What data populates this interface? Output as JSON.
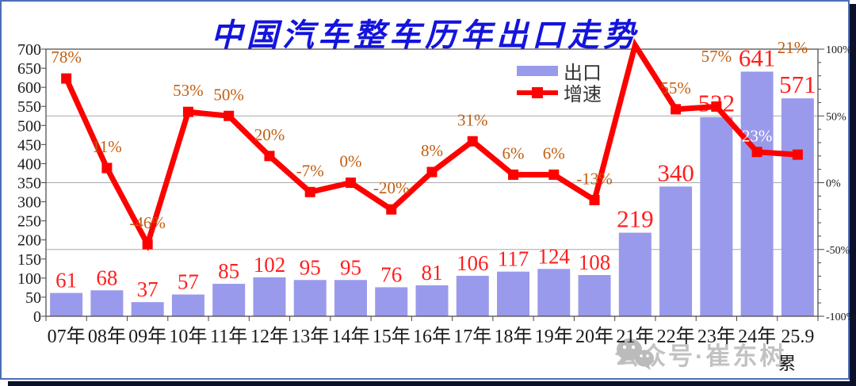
{
  "title": "中国汽车整车历年出口走势",
  "legend": {
    "bar_label": "出口",
    "line_label": "增速"
  },
  "watermark": {
    "text": "公众号·崔东树",
    "icon": "wechat-icon"
  },
  "chart_data": {
    "type": "bar",
    "subtype": "bar+line combo, dual axis",
    "categories": [
      "07年",
      "08年",
      "09年",
      "10年",
      "11年",
      "12年",
      "13年",
      "14年",
      "15年",
      "16年",
      "17年",
      "18年",
      "19年",
      "20年",
      "21年",
      "22年",
      "23年",
      "24年",
      "25.9"
    ],
    "x_axis_note": "累",
    "series": [
      {
        "name": "出口",
        "type": "bar",
        "axis": "left",
        "values": [
          61,
          68,
          37,
          57,
          85,
          102,
          95,
          95,
          76,
          81,
          106,
          117,
          124,
          108,
          219,
          340,
          522,
          641,
          571
        ]
      },
      {
        "name": "增速",
        "type": "line",
        "axis": "right",
        "unit": "%",
        "values": [
          78,
          11,
          -46,
          53,
          50,
          20,
          -7,
          0,
          -20,
          8,
          31,
          6,
          6,
          -13,
          103,
          55,
          57,
          23,
          21
        ],
        "labels": [
          "78%",
          "11%",
          "-46%",
          "53%",
          "50%",
          "20%",
          "-7%",
          "0%",
          "-20%",
          "8%",
          "31%",
          "6%",
          "6%",
          "-13%",
          "",
          "55%",
          "57%",
          "23%",
          "21%"
        ]
      }
    ],
    "left_axis": {
      "min": 0,
      "max": 700,
      "step": 50
    },
    "right_axis": {
      "min": -100,
      "max": 100,
      "step": 50,
      "minor_step": 10,
      "unit": "%"
    },
    "grid": "horizontal gridlines at right-axis majors 50%, 0%, -50%",
    "legend_position": "top-right inside plot"
  },
  "colors": {
    "bar": "#9a9aec",
    "line": "#ff0000",
    "value_label": "#ff1e1e",
    "pct_label": "#c15e10",
    "pct_label_on_bar": "#ffffff",
    "grid": "#a8a8a8",
    "axis": "#444444",
    "tick_label": "#1a1a1a",
    "title": "#1414dd",
    "watermark": "#b3b3b3"
  }
}
